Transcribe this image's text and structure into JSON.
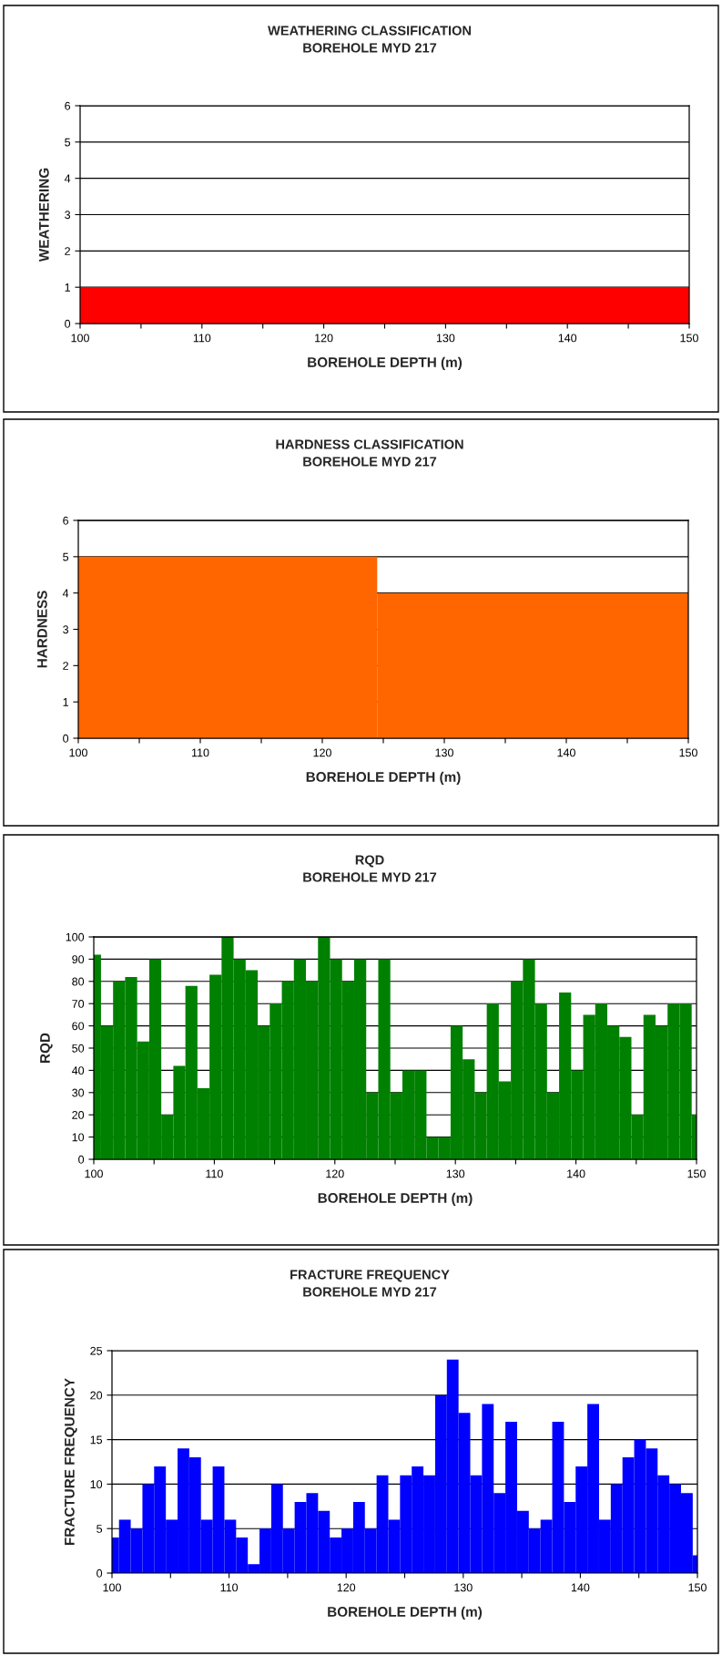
{
  "chart_data": [
    {
      "type": "histogram",
      "title": "WEATHERING CLASSIFICATION",
      "subtitle": "BOREHOLE MYD 217",
      "xlabel": "BOREHOLE DEPTH (m)",
      "ylabel": "WEATHERING",
      "color": "#ff0000",
      "bins": [
        100,
        150
      ],
      "values": [
        1
      ],
      "xlim": [
        100,
        150
      ],
      "xticks": [
        100,
        {
          "value": 105,
          "label": null
        },
        110,
        {
          "value": 115,
          "label": null
        },
        120,
        {
          "value": 125,
          "label": null
        },
        130,
        {
          "value": 135,
          "label": null
        },
        140,
        {
          "value": 145,
          "label": null
        },
        150
      ],
      "ylim": [
        0,
        6
      ],
      "yticks": [
        0,
        1,
        2,
        3,
        4,
        5,
        6
      ],
      "grid": "y",
      "legend": false
    },
    {
      "type": "histogram",
      "title": "HARDNESS CLASSIFICATION",
      "subtitle": "BOREHOLE MYD 217",
      "xlabel": "BOREHOLE DEPTH (m)",
      "ylabel": "HARDNESS",
      "color": "#ff6600",
      "bins": [
        100,
        124.5,
        150
      ],
      "values": [
        5,
        4
      ],
      "xlim": [
        100,
        150
      ],
      "xticks": [
        100,
        {
          "value": 105,
          "label": null
        },
        110,
        {
          "value": 115,
          "label": null
        },
        120,
        {
          "value": 125,
          "label": null
        },
        130,
        {
          "value": 135,
          "label": null
        },
        140,
        {
          "value": 145,
          "label": null
        },
        150
      ],
      "ylim": [
        0,
        6
      ],
      "yticks": [
        0,
        1,
        2,
        3,
        4,
        5,
        6
      ],
      "grid": "y",
      "legend": false
    },
    {
      "type": "histogram",
      "title": "RQD",
      "subtitle": "BOREHOLE MYD 217",
      "xlabel": "BOREHOLE DEPTH (m)",
      "ylabel": "RQD",
      "color": "#008000",
      "bins": [
        100,
        100.6,
        101.6,
        102.6,
        103.6,
        104.6,
        105.6,
        106.6,
        107.6,
        108.6,
        109.6,
        110.6,
        111.6,
        112.6,
        113.6,
        114.6,
        115.6,
        116.6,
        117.6,
        118.6,
        119.6,
        120.6,
        121.6,
        122.6,
        123.6,
        124.6,
        125.6,
        126.6,
        127.6,
        128.6,
        129.6,
        130.6,
        131.6,
        132.6,
        133.6,
        134.6,
        135.6,
        136.6,
        137.6,
        138.6,
        139.6,
        140.6,
        141.6,
        142.6,
        143.6,
        144.6,
        145.6,
        146.6,
        147.6,
        148.6,
        149.6,
        150
      ],
      "values": [
        92,
        60,
        80,
        82,
        53,
        90,
        20,
        42,
        78,
        32,
        83,
        100,
        90,
        85,
        60,
        70,
        80,
        90,
        80,
        100,
        90,
        80,
        90,
        30,
        90,
        30,
        40,
        40,
        10,
        10,
        60,
        45,
        30,
        70,
        35,
        80,
        90,
        70,
        30,
        75,
        40,
        65,
        70,
        60,
        55,
        20,
        65,
        60,
        70,
        70,
        20
      ],
      "xlim": [
        100,
        150
      ],
      "xticks": [
        100,
        {
          "value": 105,
          "label": null
        },
        110,
        {
          "value": 115,
          "label": null
        },
        120,
        {
          "value": 125,
          "label": null
        },
        130,
        {
          "value": 135,
          "label": null
        },
        140,
        {
          "value": 145,
          "label": null
        },
        150
      ],
      "ylim": [
        0,
        100
      ],
      "yticks": [
        0,
        10,
        20,
        30,
        40,
        50,
        60,
        70,
        80,
        90,
        100
      ],
      "grid": "y",
      "legend": false
    },
    {
      "type": "histogram",
      "title": "FRACTURE FREQUENCY",
      "subtitle": "BOREHOLE MYD 217",
      "xlabel": "BOREHOLE DEPTH (m)",
      "ylabel": "FRACTURE FREQUENCY",
      "color": "#0000ff",
      "bins": [
        100,
        100.6,
        101.6,
        102.6,
        103.6,
        104.6,
        105.6,
        106.6,
        107.6,
        108.6,
        109.6,
        110.6,
        111.6,
        112.6,
        113.6,
        114.6,
        115.6,
        116.6,
        117.6,
        118.6,
        119.6,
        120.6,
        121.6,
        122.6,
        123.6,
        124.6,
        125.6,
        126.6,
        127.6,
        128.6,
        129.6,
        130.6,
        131.6,
        132.6,
        133.6,
        134.6,
        135.6,
        136.6,
        137.6,
        138.6,
        139.6,
        140.6,
        141.6,
        142.6,
        143.6,
        144.6,
        145.6,
        146.6,
        147.6,
        148.6,
        149.6,
        150
      ],
      "values": [
        4,
        6,
        5,
        10,
        12,
        6,
        14,
        13,
        6,
        12,
        6,
        4,
        1,
        5,
        10,
        5,
        8,
        9,
        7,
        4,
        5,
        8,
        5,
        11,
        6,
        11,
        12,
        11,
        20,
        24,
        18,
        11,
        19,
        9,
        17,
        7,
        5,
        6,
        17,
        8,
        12,
        19,
        6,
        10,
        13,
        15,
        14,
        11,
        10,
        9,
        2
      ],
      "xlim": [
        100,
        150
      ],
      "xticks": [
        100,
        {
          "value": 105,
          "label": null
        },
        110,
        {
          "value": 115,
          "label": null
        },
        120,
        {
          "value": 125,
          "label": null
        },
        130,
        {
          "value": 135,
          "label": null
        },
        140,
        {
          "value": 145,
          "label": null
        },
        150
      ],
      "ylim": [
        0,
        25
      ],
      "yticks": [
        0,
        5,
        10,
        15,
        20,
        25
      ],
      "grid": "y",
      "legend": false
    }
  ]
}
